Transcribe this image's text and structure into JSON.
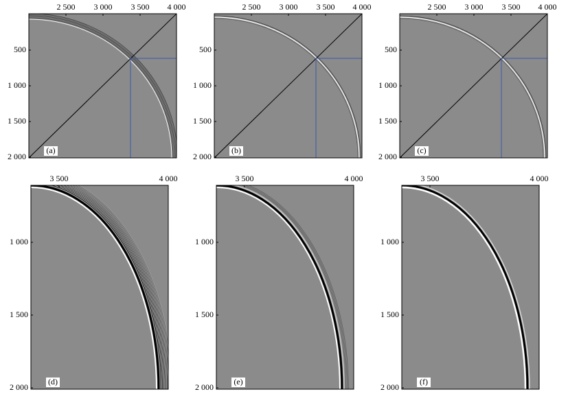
{
  "panels": [
    {
      "label": "(a)",
      "xticks": [
        "2 500",
        "3 000",
        "3 500",
        "4 000"
      ],
      "yticks": [
        "500",
        "1 000",
        "1 500",
        "2 000"
      ]
    },
    {
      "label": "(b)",
      "xticks": [
        "2 500",
        "3 000",
        "3 500",
        "4 000"
      ],
      "yticks": [
        "500",
        "1 000",
        "1 500",
        "2 000"
      ]
    },
    {
      "label": "(c)",
      "xticks": [
        "2 500",
        "3 000",
        "3 500",
        "4 000"
      ],
      "yticks": [
        "500",
        "1 000",
        "1 500",
        "2 000"
      ]
    },
    {
      "label": "(d)",
      "xticks": [
        "3 500",
        "4 000"
      ],
      "yticks": [
        "1 000",
        "1 500",
        "2 000"
      ]
    },
    {
      "label": "(e)",
      "xticks": [
        "3 500",
        "4 000"
      ],
      "yticks": [
        "1 000",
        "1 500",
        "2 000"
      ]
    },
    {
      "label": "(f)",
      "xticks": [
        "3 500",
        "4 000"
      ],
      "yticks": [
        "1 000",
        "1 500",
        "2 000"
      ]
    }
  ]
}
